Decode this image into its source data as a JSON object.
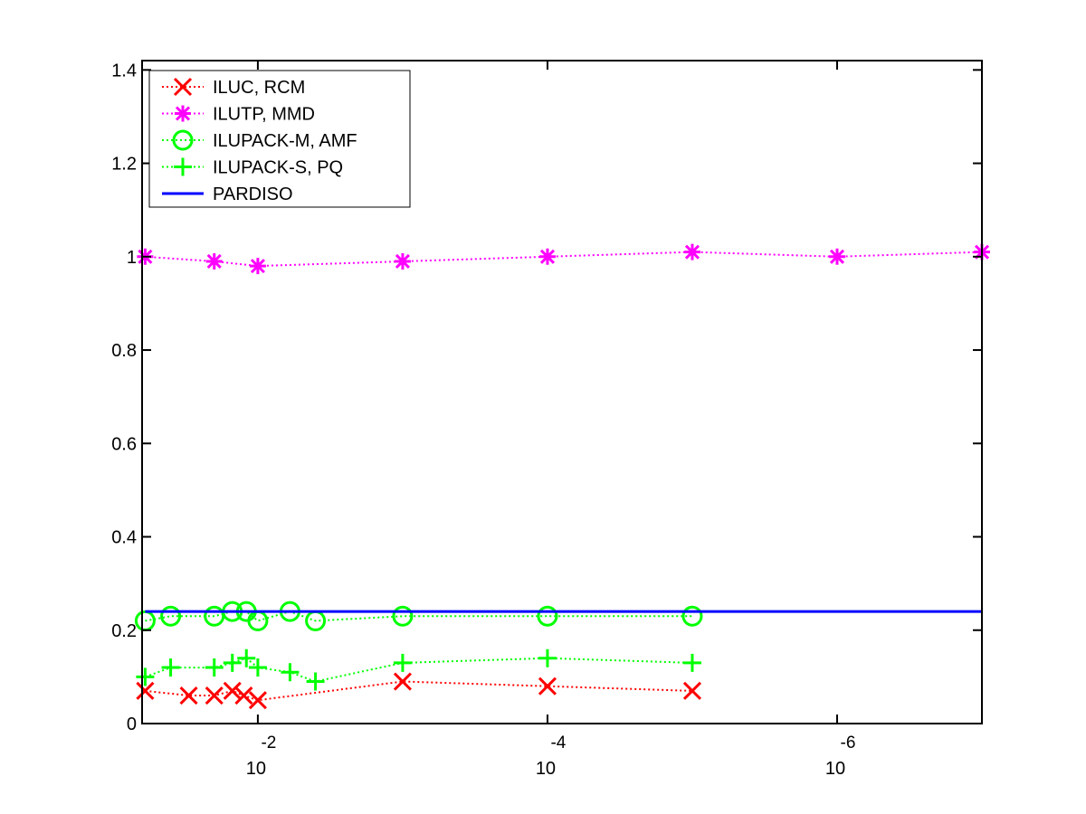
{
  "chart_data": {
    "type": "line",
    "x_scale": "log",
    "x_direction": "decreasing",
    "xlim": [
      0.063,
      1e-07
    ],
    "ylim": [
      0,
      1.42
    ],
    "x_ticks": [
      {
        "value": 0.01,
        "base": "10",
        "exp": "-2"
      },
      {
        "value": 0.0001,
        "base": "10",
        "exp": "-4"
      },
      {
        "value": 1e-06,
        "base": "10",
        "exp": "-6"
      }
    ],
    "y_ticks": [
      {
        "value": 0,
        "label": "0"
      },
      {
        "value": 0.2,
        "label": "0.2"
      },
      {
        "value": 0.4,
        "label": "0.4"
      },
      {
        "value": 0.6,
        "label": "0.6"
      },
      {
        "value": 0.8,
        "label": "0.8"
      },
      {
        "value": 1.0,
        "label": "1"
      },
      {
        "value": 1.2,
        "label": "1.2"
      },
      {
        "value": 1.4,
        "label": "1.4"
      }
    ],
    "grid": false,
    "legend_position": "top-left",
    "series": [
      {
        "name": "ILUC, RCM",
        "color": "#ff0000",
        "line": "dotted",
        "marker": "x",
        "points": [
          [
            0.06,
            0.07
          ],
          [
            0.03,
            0.06
          ],
          [
            0.02,
            0.06
          ],
          [
            0.015,
            0.07
          ],
          [
            0.0125,
            0.06
          ],
          [
            0.01,
            0.05
          ],
          [
            0.001,
            0.09
          ],
          [
            0.0001,
            0.08
          ],
          [
            1e-05,
            0.07
          ]
        ]
      },
      {
        "name": "ILUTP, MMD",
        "color": "#ff00ff",
        "line": "dotted",
        "marker": "star",
        "points": [
          [
            0.06,
            1.0
          ],
          [
            0.02,
            0.99
          ],
          [
            0.01,
            0.98
          ],
          [
            0.001,
            0.99
          ],
          [
            0.0001,
            1.0
          ],
          [
            1e-05,
            1.01
          ],
          [
            1e-06,
            1.0
          ],
          [
            1e-07,
            1.01
          ]
        ]
      },
      {
        "name": "ILUPACK-M, AMF",
        "color": "#00ff00",
        "line": "dotted",
        "marker": "circle",
        "points": [
          [
            0.06,
            0.22
          ],
          [
            0.04,
            0.23
          ],
          [
            0.02,
            0.23
          ],
          [
            0.015,
            0.24
          ],
          [
            0.012,
            0.24
          ],
          [
            0.01,
            0.22
          ],
          [
            0.006,
            0.24
          ],
          [
            0.004,
            0.22
          ],
          [
            0.001,
            0.23
          ],
          [
            0.0001,
            0.23
          ],
          [
            1e-05,
            0.23
          ]
        ]
      },
      {
        "name": "ILUPACK-S, PQ",
        "color": "#00ff00",
        "line": "dotted",
        "marker": "plus",
        "points": [
          [
            0.06,
            0.1
          ],
          [
            0.04,
            0.12
          ],
          [
            0.02,
            0.12
          ],
          [
            0.015,
            0.13
          ],
          [
            0.012,
            0.14
          ],
          [
            0.01,
            0.12
          ],
          [
            0.006,
            0.11
          ],
          [
            0.004,
            0.09
          ],
          [
            0.001,
            0.13
          ],
          [
            0.0001,
            0.14
          ],
          [
            1e-05,
            0.13
          ]
        ]
      },
      {
        "name": "PARDISO",
        "color": "#0000ff",
        "line": "solid",
        "marker": "none",
        "points": [
          [
            0.06,
            0.24
          ],
          [
            1e-07,
            0.24
          ]
        ]
      }
    ]
  }
}
